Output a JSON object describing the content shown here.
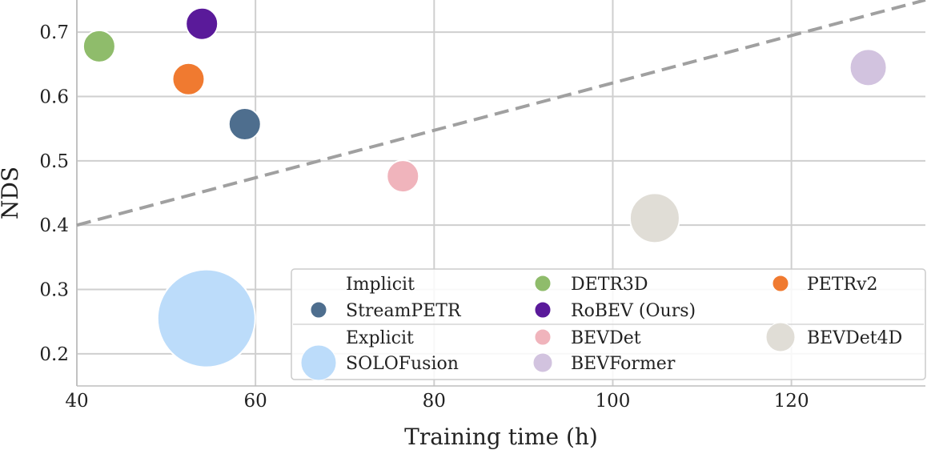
{
  "chart_data": {
    "type": "scatter",
    "title": "",
    "xlabel": "Training time (h)",
    "ylabel": "NDS",
    "xlim": [
      40,
      135
    ],
    "ylim": [
      0.15,
      0.75
    ],
    "xticks": [
      40,
      60,
      80,
      100,
      120
    ],
    "yticks": [
      0.2,
      0.3,
      0.4,
      0.5,
      0.6,
      0.7
    ],
    "xtick_labels": [
      "40",
      "60",
      "80",
      "100",
      "120"
    ],
    "ytick_labels": [
      "0.2",
      "0.3",
      "0.4",
      "0.5",
      "0.6",
      "0.7"
    ],
    "grid": true,
    "trend_line": {
      "style": "dashed",
      "color": "#a0a0a0",
      "points": [
        [
          40,
          0.4
        ],
        [
          135,
          0.75
        ]
      ]
    },
    "groups": [
      {
        "name": "Implicit",
        "members": [
          "StreamPETR",
          "DETR3D",
          "PETRv2",
          "RoBEV (Ours)"
        ]
      },
      {
        "name": "Explicit",
        "members": [
          "SOLOFusion",
          "BEVDet",
          "BEVDet4D",
          "BEVFormer"
        ]
      }
    ],
    "series": [
      {
        "name": "StreamPETR",
        "group": "Implicit",
        "x": 58.8,
        "y": 0.557,
        "color": "#4e6e8e",
        "size": "small"
      },
      {
        "name": "DETR3D",
        "group": "Implicit",
        "x": 42.5,
        "y": 0.678,
        "color": "#8fbc6b",
        "size": "small"
      },
      {
        "name": "PETRv2",
        "group": "Implicit",
        "x": 52.5,
        "y": 0.627,
        "color": "#f07a30",
        "size": "small"
      },
      {
        "name": "RoBEV (Ours)",
        "group": "Implicit",
        "x": 54.0,
        "y": 0.713,
        "color": "#5a1a9a",
        "size": "small"
      },
      {
        "name": "SOLOFusion",
        "group": "Explicit",
        "x": 54.5,
        "y": 0.255,
        "color": "#bcdcfa",
        "size": "xlarge"
      },
      {
        "name": "BEVDet",
        "group": "Explicit",
        "x": 76.5,
        "y": 0.476,
        "color": "#f0b4bc",
        "size": "small"
      },
      {
        "name": "BEVDet4D",
        "group": "Explicit",
        "x": 104.7,
        "y": 0.411,
        "color": "#e0ddd6",
        "size": "large"
      },
      {
        "name": "BEVFormer",
        "group": "Explicit",
        "x": 128.6,
        "y": 0.645,
        "color": "#d2c3df",
        "size": "medium"
      }
    ],
    "legend": {
      "location": "lower-right",
      "rows": [
        [
          "Implicit",
          "DETR3D",
          "PETRv2"
        ],
        [
          "StreamPETR",
          "RoBEV (Ours)",
          ""
        ],
        [
          "Explicit",
          "BEVDet",
          "BEVDet4D"
        ],
        [
          "SOLOFusion",
          "BEVFormer",
          ""
        ]
      ]
    }
  }
}
